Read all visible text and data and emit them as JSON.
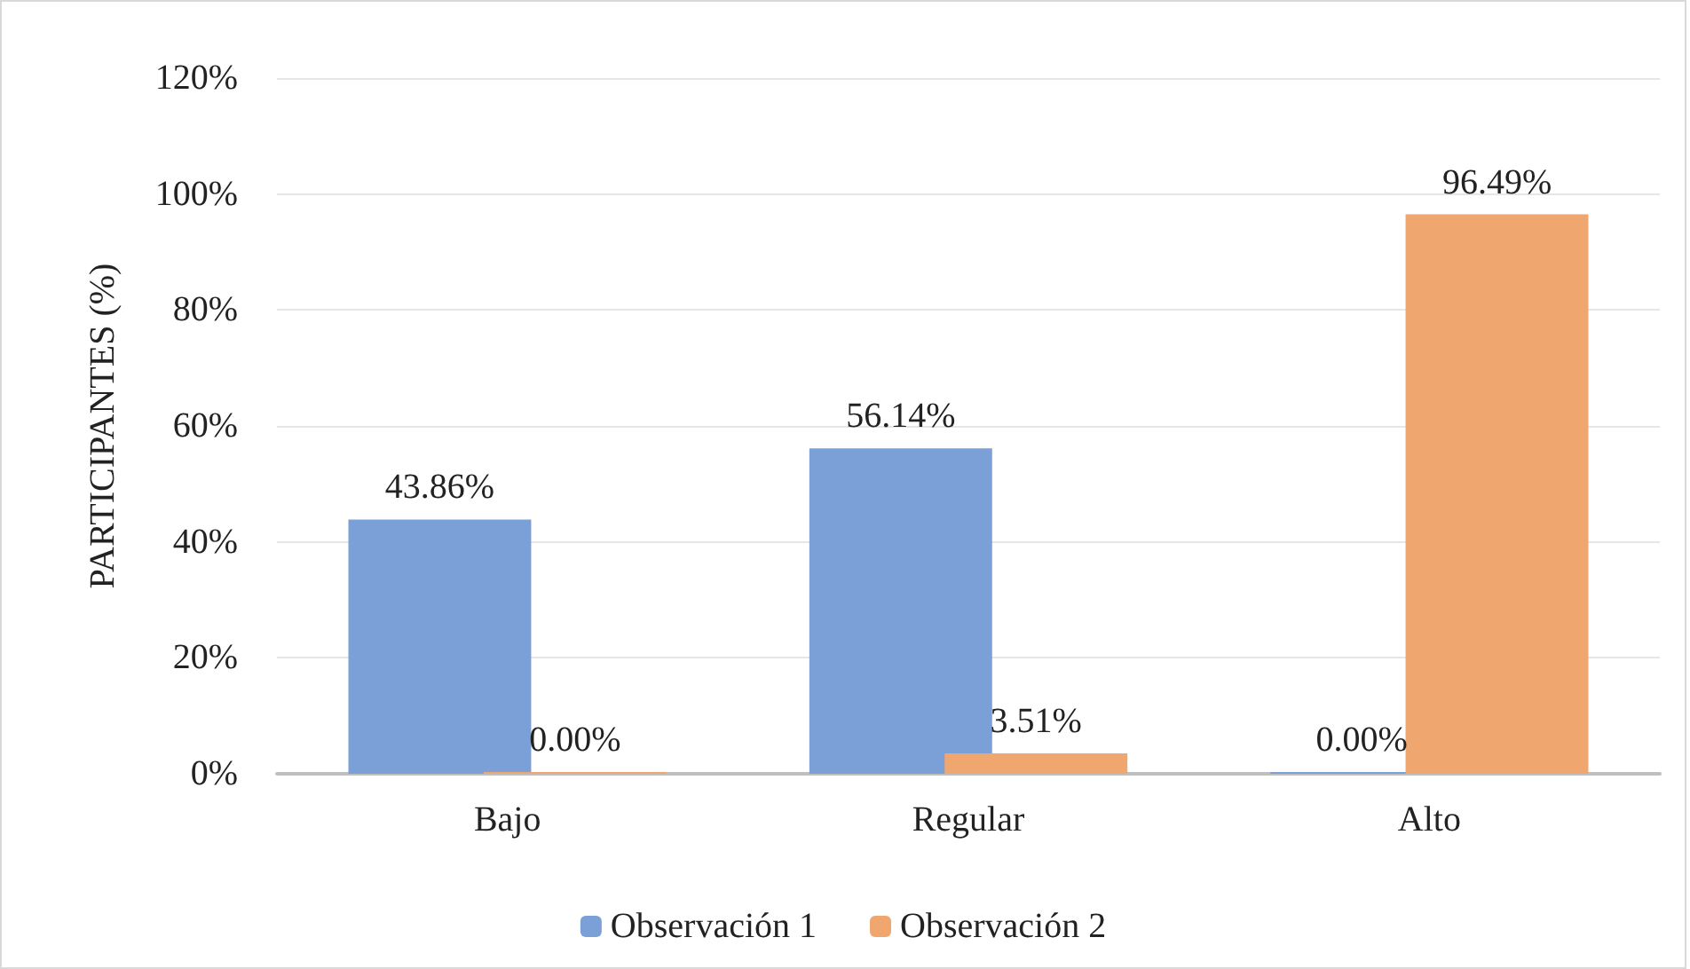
{
  "chart_data": {
    "type": "bar",
    "ylabel": "PARTICIPANTES (%)",
    "categories": [
      "Bajo",
      "Regular",
      "Alto"
    ],
    "series": [
      {
        "name": "Observación 1",
        "color": "#7ba0d8",
        "values": [
          43.86,
          56.14,
          0
        ],
        "value_labels": [
          "43.86%",
          "56.14%",
          "0.00%"
        ]
      },
      {
        "name": "Observación 2",
        "color": "#f0a66f",
        "values": [
          0,
          3.51,
          96.49
        ],
        "value_labels": [
          "0.00%",
          "3.51%",
          "96.49%"
        ]
      }
    ],
    "ylim": [
      0,
      120
    ],
    "yticks": [
      {
        "value": 0,
        "label": "0%"
      },
      {
        "value": 20,
        "label": "20%"
      },
      {
        "value": 40,
        "label": "40%"
      },
      {
        "value": 60,
        "label": "60%"
      },
      {
        "value": 80,
        "label": "80%"
      },
      {
        "value": 100,
        "label": "100%"
      },
      {
        "value": 120,
        "label": "120%"
      }
    ],
    "grid": "y",
    "legend": "bottom"
  }
}
